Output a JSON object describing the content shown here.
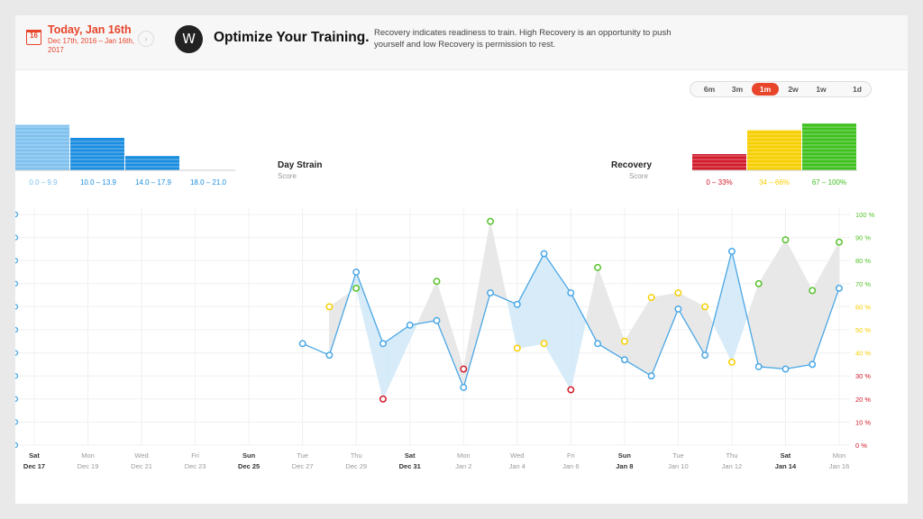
{
  "header": {
    "calendar_day": "16",
    "date_title": "Today, Jan 16th",
    "date_range": "Dec 17th, 2016 – Jan 16th, 2017",
    "next_glyph": "›",
    "logo_glyph": "W",
    "headline": "Optimize Your Training.",
    "description": "Recovery indicates readiness to train. High Recovery is an opportunity to push yourself and low Recovery is permission to rest."
  },
  "range_selector": {
    "options": [
      "6m",
      "3m",
      "1m",
      "2w",
      "1w",
      "1d"
    ],
    "selected": "1m"
  },
  "strain_legend": {
    "title": "Day Strain",
    "subtitle": "Score",
    "bins": [
      {
        "label": "0.0 – 9.9",
        "color": "#7ec0ee",
        "level": 0.7
      },
      {
        "label": "10.0 – 13.9",
        "color": "#1a8de0",
        "level": 0.5
      },
      {
        "label": "14.0 – 17.9",
        "color": "#1a8de0",
        "level": 0.22
      },
      {
        "label": "18.0 – 21.0",
        "color": "#1a8de0",
        "level": 0
      }
    ]
  },
  "recovery_legend": {
    "title": "Recovery",
    "subtitle": "Score",
    "bins": [
      {
        "label": "0 – 33%",
        "color": "#d11a2a",
        "level": 0.25
      },
      {
        "label": "34 – 66%",
        "color": "#f6cf00",
        "level": 0.62
      },
      {
        "label": "67 – 100%",
        "color": "#3ec01e",
        "level": 0.72
      }
    ]
  },
  "colors": {
    "strain": "#4aa7e6",
    "strain_fill": "#d7ebf8",
    "recovery_fill": "#e8e8e8",
    "red": "#d11a2a",
    "yellow": "#f6cf00",
    "green": "#56c22a"
  },
  "chart_data": {
    "type": "line",
    "title": "",
    "xlabel": "",
    "ylabel_right": "Recovery",
    "x_ticks": [
      {
        "weekday": "Sat",
        "date": "Dec 17",
        "bold": true
      },
      {
        "weekday": "Mon",
        "date": "Dec 19",
        "bold": false
      },
      {
        "weekday": "Wed",
        "date": "Dec 21",
        "bold": false
      },
      {
        "weekday": "Fri",
        "date": "Dec 23",
        "bold": false
      },
      {
        "weekday": "Sun",
        "date": "Dec 25",
        "bold": true
      },
      {
        "weekday": "Tue",
        "date": "Dec 27",
        "bold": false
      },
      {
        "weekday": "Thu",
        "date": "Dec 29",
        "bold": false
      },
      {
        "weekday": "Sat",
        "date": "Dec 31",
        "bold": true
      },
      {
        "weekday": "Mon",
        "date": "Jan 2",
        "bold": false
      },
      {
        "weekday": "Wed",
        "date": "Jan 4",
        "bold": false
      },
      {
        "weekday": "Fri",
        "date": "Jan 6",
        "bold": false
      },
      {
        "weekday": "Sun",
        "date": "Jan 8",
        "bold": true
      },
      {
        "weekday": "Tue",
        "date": "Jan 10",
        "bold": false
      },
      {
        "weekday": "Thu",
        "date": "Jan 12",
        "bold": false
      },
      {
        "weekday": "Sat",
        "date": "Jan 14",
        "bold": true
      },
      {
        "weekday": "Mon",
        "date": "Jan 16",
        "bold": false
      }
    ],
    "y_right_ticks": [
      "100 %",
      "90 %",
      "80 %",
      "70 %",
      "60 %",
      "50 %",
      "40 %",
      "30 %",
      "20 %",
      "10 %",
      "0 %"
    ],
    "y_range": [
      0,
      100
    ],
    "x_range_days": [
      0,
      30
    ],
    "series": [
      {
        "name": "Day Strain (plotted on recovery scale)",
        "x": [
          10,
          11,
          12,
          13,
          14,
          15,
          16,
          17,
          18,
          19,
          20,
          21,
          22,
          23,
          24,
          25,
          26,
          27,
          28,
          29,
          30
        ],
        "values": [
          44,
          39,
          75,
          44,
          52,
          54,
          25,
          66,
          61,
          83,
          66,
          44,
          37,
          30,
          59,
          39,
          84,
          34,
          33,
          35,
          68
        ]
      },
      {
        "name": "Recovery",
        "x": [
          11,
          12,
          13,
          15,
          16,
          17,
          18,
          19,
          20,
          21,
          22,
          23,
          24,
          25,
          26,
          27,
          28,
          29,
          30
        ],
        "values": [
          60,
          68,
          20,
          71,
          33,
          97,
          42,
          44,
          24,
          77,
          45,
          64,
          66,
          60,
          36,
          70,
          89,
          67,
          88
        ]
      }
    ]
  }
}
